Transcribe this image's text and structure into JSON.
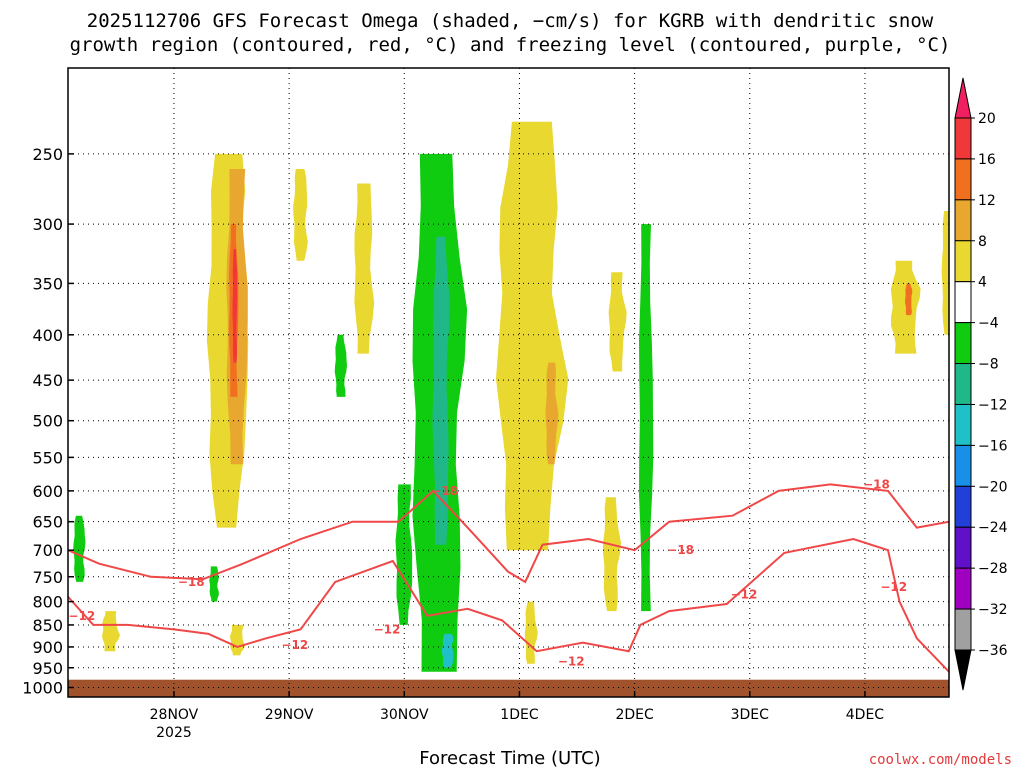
{
  "chart_data": {
    "type": "heatmap",
    "title_line1": "2025112706 GFS Forecast Omega (shaded, −cm/s) for KGRB with dendritic snow",
    "title_line2": "growth region (contoured, red, °C) and freezing level (contoured, purple, °C)",
    "xlabel": "Forecast Time (UTC)",
    "credit": "coolwx.com/models",
    "x_tick_labels": [
      {
        "label": "28NOV",
        "sub": "2025",
        "day": 1
      },
      {
        "label": "29NOV",
        "sub": "",
        "day": 2
      },
      {
        "label": "30NOV",
        "sub": "",
        "day": 3
      },
      {
        "label": "1DEC",
        "sub": "",
        "day": 4
      },
      {
        "label": "2DEC",
        "sub": "",
        "day": 5
      },
      {
        "label": "3DEC",
        "sub": "",
        "day": 6
      },
      {
        "label": "4DEC",
        "sub": "",
        "day": 7
      }
    ],
    "xlim_days": [
      0.08,
      7.73
    ],
    "y_tick_labels": [
      250,
      300,
      350,
      400,
      450,
      500,
      550,
      600,
      650,
      700,
      750,
      800,
      850,
      900,
      950,
      1000
    ],
    "ylim_hpa": [
      200,
      1025
    ],
    "y_scale": "log-pressure (inverted)",
    "grid": true,
    "colorbar": {
      "labels": [
        "20",
        "16",
        "12",
        "8",
        "4",
        "−4",
        "−8",
        "−12",
        "−16",
        "−20",
        "−24",
        "−28",
        "−32",
        "−36"
      ],
      "colors": [
        "#f02060",
        "#f03838",
        "#f07020",
        "#e8a830",
        "#e8d830",
        "#ffffff",
        "#10cc10",
        "#20b888",
        "#20c0c8",
        "#1890e8",
        "#2040d8",
        "#6010c8",
        "#a000c0",
        "#a0a0a0",
        "#000000"
      ]
    },
    "omega_regions": [
      {
        "color": "#e8d830",
        "day": 1.47,
        "p_top": 250,
        "p_bot": 660,
        "halfwidth": 0.17
      },
      {
        "color": "#e8a830",
        "day": 1.55,
        "p_top": 260,
        "p_bot": 560,
        "halfwidth": 0.09
      },
      {
        "color": "#f07020",
        "day": 1.52,
        "p_top": 300,
        "p_bot": 470,
        "halfwidth": 0.04
      },
      {
        "color": "#f03838",
        "day": 1.53,
        "p_top": 320,
        "p_bot": 430,
        "halfwidth": 0.02
      },
      {
        "color": "#e8d830",
        "day": 2.1,
        "p_top": 260,
        "p_bot": 330,
        "halfwidth": 0.06
      },
      {
        "color": "#e8d830",
        "day": 2.65,
        "p_top": 270,
        "p_bot": 420,
        "halfwidth": 0.08
      },
      {
        "color": "#e8d830",
        "day": 4.1,
        "p_top": 230,
        "p_bot": 700,
        "halfwidth": 0.28
      },
      {
        "color": "#e8a830",
        "day": 4.28,
        "p_top": 430,
        "p_bot": 560,
        "halfwidth": 0.05
      },
      {
        "color": "#e8d830",
        "day": 4.85,
        "p_top": 340,
        "p_bot": 440,
        "halfwidth": 0.07
      },
      {
        "color": "#e8d830",
        "day": 7.35,
        "p_top": 330,
        "p_bot": 420,
        "halfwidth": 0.12
      },
      {
        "color": "#f07020",
        "day": 7.38,
        "p_top": 350,
        "p_bot": 380,
        "halfwidth": 0.03
      },
      {
        "color": "#e8d830",
        "day": 7.72,
        "p_top": 290,
        "p_bot": 400,
        "halfwidth": 0.05
      },
      {
        "color": "#e8d830",
        "day": 1.55,
        "p_top": 850,
        "p_bot": 920,
        "halfwidth": 0.06
      },
      {
        "color": "#e8d830",
        "day": 0.45,
        "p_top": 820,
        "p_bot": 910,
        "halfwidth": 0.07
      },
      {
        "color": "#e8d830",
        "day": 4.1,
        "p_top": 800,
        "p_bot": 940,
        "halfwidth": 0.05
      },
      {
        "color": "#e8d830",
        "day": 4.8,
        "p_top": 610,
        "p_bot": 820,
        "halfwidth": 0.07
      },
      {
        "color": "#10cc10",
        "day": 3.3,
        "p_top": 250,
        "p_bot": 960,
        "halfwidth": 0.22
      },
      {
        "color": "#20b888",
        "day": 3.32,
        "p_top": 310,
        "p_bot": 690,
        "halfwidth": 0.07
      },
      {
        "color": "#20c0c8",
        "day": 3.38,
        "p_top": 870,
        "p_bot": 950,
        "halfwidth": 0.05
      },
      {
        "color": "#10cc10",
        "day": 3.0,
        "p_top": 590,
        "p_bot": 850,
        "halfwidth": 0.07
      },
      {
        "color": "#10cc10",
        "day": 5.1,
        "p_top": 300,
        "p_bot": 820,
        "halfwidth": 0.06
      },
      {
        "color": "#10cc10",
        "day": 2.45,
        "p_top": 400,
        "p_bot": 470,
        "halfwidth": 0.05
      },
      {
        "color": "#10cc10",
        "day": 0.18,
        "p_top": 640,
        "p_bot": 760,
        "halfwidth": 0.05
      },
      {
        "color": "#10cc10",
        "day": 1.35,
        "p_top": 730,
        "p_bot": 800,
        "halfwidth": 0.04
      }
    ],
    "contours": [
      {
        "label": "−12",
        "color": "#f04848",
        "points": [
          [
            0.08,
            790
          ],
          [
            0.3,
            850
          ],
          [
            0.6,
            850
          ],
          [
            1.0,
            860
          ],
          [
            1.3,
            870
          ],
          [
            1.55,
            900
          ],
          [
            1.8,
            880
          ],
          [
            2.1,
            860
          ],
          [
            2.4,
            760
          ],
          [
            2.9,
            720
          ],
          [
            3.2,
            830
          ],
          [
            3.55,
            815
          ],
          [
            3.85,
            840
          ],
          [
            4.15,
            910
          ],
          [
            4.55,
            890
          ],
          [
            4.95,
            910
          ],
          [
            5.05,
            850
          ],
          [
            5.3,
            820
          ],
          [
            5.8,
            805
          ],
          [
            6.3,
            705
          ],
          [
            6.9,
            680
          ],
          [
            7.2,
            700
          ],
          [
            7.3,
            800
          ],
          [
            7.45,
            880
          ],
          [
            7.73,
            960
          ]
        ],
        "label_at": [
          0.2,
          830
        ],
        "label_at2": [
          2.85,
          860
        ],
        "label_at3": [
          5.95,
          785
        ],
        "label_at4": [
          4.45,
          935
        ],
        "label_at5": [
          7.25,
          770
        ],
        "label_at6": [
          2.05,
          895
        ]
      },
      {
        "label": "−18",
        "color": "#f04848",
        "points": [
          [
            0.08,
            700
          ],
          [
            0.35,
            725
          ],
          [
            0.8,
            750
          ],
          [
            1.25,
            755
          ],
          [
            1.6,
            725
          ],
          [
            2.1,
            680
          ],
          [
            2.55,
            650
          ],
          [
            2.95,
            650
          ],
          [
            3.25,
            600
          ],
          [
            3.55,
            660
          ],
          [
            3.9,
            740
          ],
          [
            4.05,
            760
          ],
          [
            4.2,
            690
          ],
          [
            4.6,
            680
          ],
          [
            5.0,
            700
          ],
          [
            5.3,
            650
          ],
          [
            5.85,
            640
          ],
          [
            6.25,
            600
          ],
          [
            6.7,
            590
          ],
          [
            7.2,
            600
          ],
          [
            7.45,
            660
          ],
          [
            7.73,
            650
          ]
        ],
        "label_at": [
          1.15,
          760
        ],
        "label_at2": [
          3.35,
          600
        ],
        "label_at3": [
          5.4,
          700
        ],
        "label_at4": [
          7.1,
          590
        ]
      }
    ]
  }
}
